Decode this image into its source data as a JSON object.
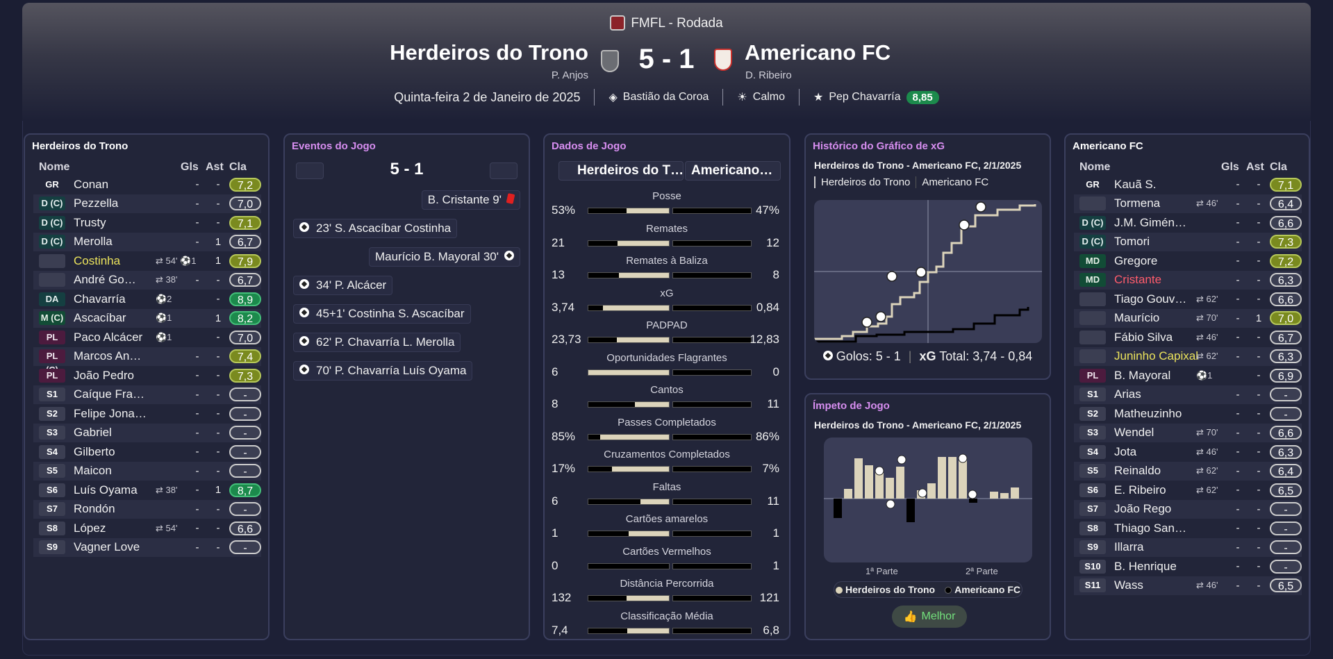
{
  "header": {
    "competition": "FMFL - Rodada",
    "home_team": "Herdeiros do Trono",
    "away_team": "Americano FC",
    "score": "5 - 1",
    "home_manager": "P. Anjos",
    "away_manager": "D. Ribeiro",
    "date": "Quinta-feira 2 de Janeiro de 2025",
    "stadium": "Bastião da Coroa",
    "weather": "Calmo",
    "potm_name": "Pep Chavarría",
    "potm_rating": "8,85"
  },
  "home_panel": {
    "title": "Herdeiros do Trono",
    "columns": {
      "name": "Nome",
      "goals": "Gls",
      "assists": "Ast",
      "rating": "Cla"
    },
    "players": [
      {
        "pos": "GR",
        "name": "Conan",
        "evt": "",
        "gls": "-",
        "ast": "-",
        "rating": "7,2",
        "tier": "g2",
        "style": "gk"
      },
      {
        "pos": "D (C)",
        "name": "Pezzella",
        "evt": "",
        "gls": "-",
        "ast": "-",
        "rating": "7,0",
        "tier": "",
        "style": "def"
      },
      {
        "pos": "D (C)",
        "name": "Trusty",
        "evt": "",
        "gls": "-",
        "ast": "-",
        "rating": "7,1",
        "tier": "g2",
        "style": "def"
      },
      {
        "pos": "D (C)",
        "name": "Merolla",
        "evt": "",
        "gls": "-",
        "ast": "1",
        "rating": "6,7",
        "tier": "",
        "style": "def"
      },
      {
        "pos": "",
        "name": "Costinha",
        "evt": "⇄ 54' ⚽1",
        "gls": "",
        "ast": "1",
        "rating": "7,9",
        "tier": "g2",
        "style": "empty",
        "name_color": "y"
      },
      {
        "pos": "",
        "name": "André Go…",
        "evt": "⇄ 38'",
        "gls": "-",
        "ast": "-",
        "rating": "6,7",
        "tier": "",
        "style": "empty"
      },
      {
        "pos": "DA (E)",
        "name": "Chavarría",
        "evt": "⚽2",
        "gls": "",
        "ast": "-",
        "rating": "8,9",
        "tier": "g3",
        "style": "def"
      },
      {
        "pos": "M (C)",
        "name": "Ascacíbar",
        "evt": "⚽1",
        "gls": "",
        "ast": "1",
        "rating": "8,2",
        "tier": "g3",
        "style": "mid"
      },
      {
        "pos": "PL (C)",
        "name": "Paco Alcácer",
        "evt": "⚽1",
        "gls": "",
        "ast": "-",
        "rating": "7,0",
        "tier": "",
        "style": "fwd"
      },
      {
        "pos": "PL (C)",
        "name": "Marcos An…",
        "evt": "",
        "gls": "-",
        "ast": "-",
        "rating": "7,4",
        "tier": "g2",
        "style": "fwd"
      },
      {
        "pos": "PL (C)",
        "name": "João Pedro",
        "evt": "",
        "gls": "-",
        "ast": "-",
        "rating": "7,3",
        "tier": "g2",
        "style": "fwd"
      },
      {
        "pos": "S1",
        "name": "Caíque Fra…",
        "evt": "",
        "gls": "-",
        "ast": "-",
        "rating": "-",
        "tier": "nil",
        "style": "sub"
      },
      {
        "pos": "S2",
        "name": "Felipe Jona…",
        "evt": "",
        "gls": "-",
        "ast": "-",
        "rating": "-",
        "tier": "nil",
        "style": "sub"
      },
      {
        "pos": "S3",
        "name": "Gabriel",
        "evt": "",
        "gls": "-",
        "ast": "-",
        "rating": "-",
        "tier": "nil",
        "style": "sub"
      },
      {
        "pos": "S4",
        "name": "Gilberto",
        "evt": "",
        "gls": "-",
        "ast": "-",
        "rating": "-",
        "tier": "nil",
        "style": "sub"
      },
      {
        "pos": "S5",
        "name": "Maicon",
        "evt": "",
        "gls": "-",
        "ast": "-",
        "rating": "-",
        "tier": "nil",
        "style": "sub"
      },
      {
        "pos": "S6",
        "name": "Luís Oyama",
        "evt": "⇄ 38'",
        "gls": "-",
        "ast": "1",
        "rating": "8,7",
        "tier": "g3",
        "style": "sub"
      },
      {
        "pos": "S7",
        "name": "Rondón",
        "evt": "",
        "gls": "-",
        "ast": "-",
        "rating": "-",
        "tier": "nil",
        "style": "sub"
      },
      {
        "pos": "S8",
        "name": "López",
        "evt": "⇄ 54'",
        "gls": "-",
        "ast": "-",
        "rating": "6,6",
        "tier": "",
        "style": "sub"
      },
      {
        "pos": "S9",
        "name": "Vagner Love",
        "evt": "",
        "gls": "-",
        "ast": "-",
        "rating": "-",
        "tier": "nil",
        "style": "sub"
      }
    ]
  },
  "events_panel": {
    "title": "Eventos do Jogo",
    "score": "5 - 1",
    "events": [
      {
        "side": "away",
        "text": "B. Cristante 9'",
        "icon": "red-card-icon"
      },
      {
        "side": "home",
        "text": "23' S. Ascacíbar Costinha",
        "icon": "goal-icon"
      },
      {
        "side": "away",
        "text": "Maurício B. Mayoral 30'",
        "icon": "goal-icon"
      },
      {
        "side": "home",
        "text": "34' P. Alcácer",
        "icon": "goal-icon"
      },
      {
        "side": "home",
        "text": "45+1' Costinha S. Ascacíbar",
        "icon": "goal-icon"
      },
      {
        "side": "home",
        "text": "62' P. Chavarría L. Merolla",
        "icon": "goal-icon"
      },
      {
        "side": "home",
        "text": "70' P. Chavarría Luís Oyama",
        "icon": "goal-icon"
      }
    ]
  },
  "stats_panel": {
    "title": "Dados de Jogo",
    "home_tab": "Herdeiros do T…",
    "away_tab": "Americano…",
    "stats": [
      {
        "label": "Posse",
        "home": "53%",
        "away": "47%",
        "hf": 0.53,
        "af": 0.47
      },
      {
        "label": "Remates",
        "home": "21",
        "away": "12",
        "hf": 0.636,
        "af": 0.364
      },
      {
        "label": "Remates à Baliza",
        "home": "13",
        "away": "8",
        "hf": 0.619,
        "af": 0.381
      },
      {
        "label": "xG",
        "home": "3,74",
        "away": "0,84",
        "hf": 0.817,
        "af": 0.183
      },
      {
        "label": "PADPAD",
        "home": "23,73",
        "away": "12,83",
        "hf": 0.649,
        "af": 0.351
      },
      {
        "label": "Oportunidades Flagrantes",
        "home": "6",
        "away": "0",
        "hf": 1.0,
        "af": 0.0
      },
      {
        "label": "Cantos",
        "home": "8",
        "away": "11",
        "hf": 0.421,
        "af": 0.579
      },
      {
        "label": "Passes Completados",
        "home": "85%",
        "away": "86%",
        "hf": 0.85,
        "af": 0.86
      },
      {
        "label": "Cruzamentos Completados",
        "home": "17%",
        "away": "7%",
        "hf": 0.708,
        "af": 0.292
      },
      {
        "label": "Faltas",
        "home": "6",
        "away": "11",
        "hf": 0.353,
        "af": 0.647
      },
      {
        "label": "Cartões amarelos",
        "home": "1",
        "away": "1",
        "hf": 0.5,
        "af": 0.5
      },
      {
        "label": "Cartões Vermelhos",
        "home": "0",
        "away": "1",
        "hf": 0.0,
        "af": 1.0
      },
      {
        "label": "Distância Percorrida",
        "home": "132",
        "away": "121",
        "hf": 0.522,
        "af": 0.478
      },
      {
        "label": "Classificação Média",
        "home": "7,4",
        "away": "6,8",
        "hf": 0.521,
        "af": 0.479
      }
    ]
  },
  "xg_panel": {
    "title": "Histórico do Gráfico de xG",
    "subtitle": "Herdeiros do Trono - Americano FC, 2/1/2025",
    "legend_home": "Herdeiros do Trono",
    "legend_away": "Americano FC",
    "footer_goals_label": "Golos: 5 - 1",
    "footer_xg_label": "xG",
    "footer_xg_value": "Total: 3,74 - 0,84",
    "colors": {
      "home": "#dcd4bb",
      "away": "#000000"
    }
  },
  "momentum_panel": {
    "title": "Ímpeto de Jogo",
    "subtitle": "Herdeiros do Trono - Americano FC, 2/1/2025",
    "half1": "1ª Parte",
    "half2": "2ª Parte",
    "legend_home": "Herdeiros do Trono",
    "legend_away": "Americano FC",
    "button": "Melhor"
  },
  "away_panel": {
    "title": "Americano FC",
    "columns": {
      "name": "Nome",
      "goals": "Gls",
      "assists": "Ast",
      "rating": "Cla"
    },
    "players": [
      {
        "pos": "GR",
        "name": "Kauã S.",
        "evt": "",
        "gls": "-",
        "ast": "-",
        "rating": "7,1",
        "tier": "g2",
        "style": "gk"
      },
      {
        "pos": "",
        "name": "Tormena",
        "evt": "⇄ 46'",
        "gls": "-",
        "ast": "-",
        "rating": "6,4",
        "tier": "",
        "style": "empty"
      },
      {
        "pos": "D (C)",
        "name": "J.M. Gimén…",
        "evt": "",
        "gls": "-",
        "ast": "-",
        "rating": "6,6",
        "tier": "",
        "style": "def"
      },
      {
        "pos": "D (C)",
        "name": "Tomori",
        "evt": "",
        "gls": "-",
        "ast": "-",
        "rating": "7,3",
        "tier": "g2",
        "style": "def"
      },
      {
        "pos": "MD",
        "name": "Gregore",
        "evt": "",
        "gls": "-",
        "ast": "-",
        "rating": "7,2",
        "tier": "g2",
        "style": "mid"
      },
      {
        "pos": "MD",
        "name": "Cristante",
        "evt": "",
        "gls": "-",
        "ast": "-",
        "rating": "6,3",
        "tier": "",
        "style": "mid",
        "name_color": "r"
      },
      {
        "pos": "",
        "name": "Tiago Gouv…",
        "evt": "⇄ 62'",
        "gls": "-",
        "ast": "-",
        "rating": "6,6",
        "tier": "",
        "style": "empty"
      },
      {
        "pos": "",
        "name": "Maurício",
        "evt": "⇄ 70'",
        "gls": "-",
        "ast": "1",
        "rating": "7,0",
        "tier": "g2",
        "style": "empty"
      },
      {
        "pos": "",
        "name": "Fábio Silva",
        "evt": "⇄ 46'",
        "gls": "-",
        "ast": "-",
        "rating": "6,7",
        "tier": "",
        "style": "empty"
      },
      {
        "pos": "",
        "name": "Juninho Capixaba",
        "evt": "⇄ 62'",
        "gls": "-",
        "ast": "-",
        "rating": "6,3",
        "tier": "",
        "style": "empty",
        "name_color": "y"
      },
      {
        "pos": "PL (C)",
        "name": "B. Mayoral",
        "evt": "⚽1",
        "gls": "",
        "ast": "-",
        "rating": "6,9",
        "tier": "",
        "style": "fwd"
      },
      {
        "pos": "S1",
        "name": "Arias",
        "evt": "",
        "gls": "-",
        "ast": "-",
        "rating": "-",
        "tier": "nil",
        "style": "sub"
      },
      {
        "pos": "S2",
        "name": "Matheuzinho",
        "evt": "",
        "gls": "-",
        "ast": "-",
        "rating": "-",
        "tier": "nil",
        "style": "sub"
      },
      {
        "pos": "S3",
        "name": "Wendel",
        "evt": "⇄ 70'",
        "gls": "-",
        "ast": "-",
        "rating": "6,6",
        "tier": "",
        "style": "sub"
      },
      {
        "pos": "S4",
        "name": "Jota",
        "evt": "⇄ 46'",
        "gls": "-",
        "ast": "-",
        "rating": "6,3",
        "tier": "",
        "style": "sub"
      },
      {
        "pos": "S5",
        "name": "Reinaldo",
        "evt": "⇄ 62'",
        "gls": "-",
        "ast": "-",
        "rating": "6,4",
        "tier": "",
        "style": "sub"
      },
      {
        "pos": "S6",
        "name": "E. Ribeiro",
        "evt": "⇄ 62'",
        "gls": "-",
        "ast": "-",
        "rating": "6,5",
        "tier": "",
        "style": "sub"
      },
      {
        "pos": "S7",
        "name": "João Rego",
        "evt": "",
        "gls": "-",
        "ast": "-",
        "rating": "-",
        "tier": "nil",
        "style": "sub"
      },
      {
        "pos": "S8",
        "name": "Thiago San…",
        "evt": "",
        "gls": "-",
        "ast": "-",
        "rating": "-",
        "tier": "nil",
        "style": "sub"
      },
      {
        "pos": "S9",
        "name": "Illarra",
        "evt": "",
        "gls": "-",
        "ast": "-",
        "rating": "-",
        "tier": "nil",
        "style": "sub"
      },
      {
        "pos": "S10",
        "name": "B. Henrique",
        "evt": "",
        "gls": "-",
        "ast": "-",
        "rating": "-",
        "tier": "nil",
        "style": "sub"
      },
      {
        "pos": "S11",
        "name": "Wass",
        "evt": "⇄ 46'",
        "gls": "-",
        "ast": "-",
        "rating": "6,5",
        "tier": "",
        "style": "sub"
      }
    ]
  }
}
